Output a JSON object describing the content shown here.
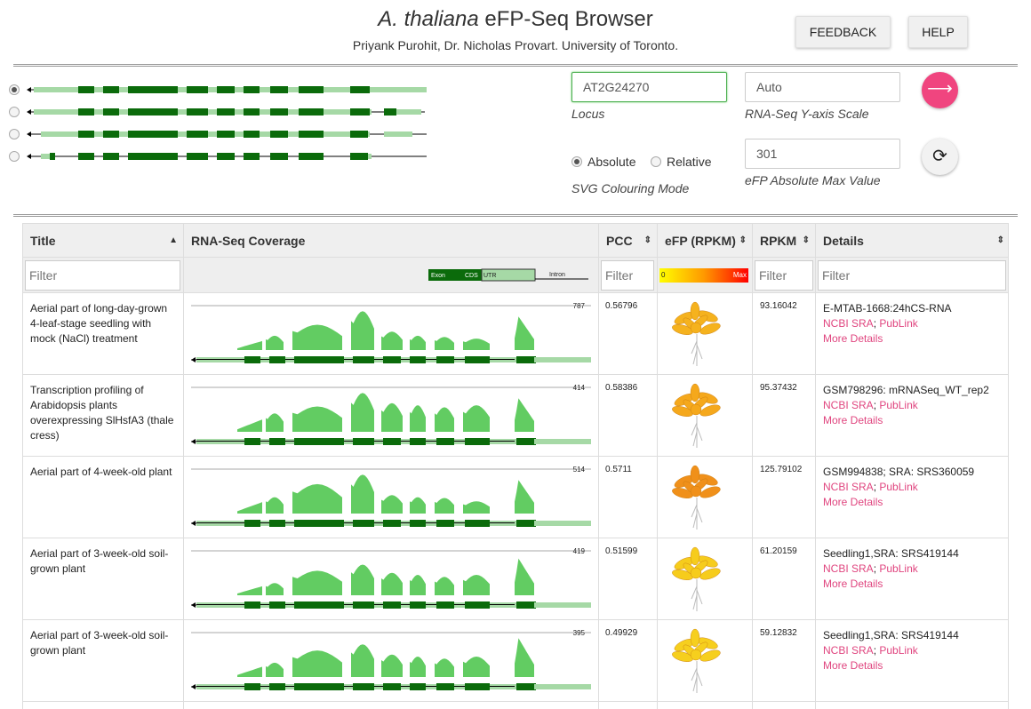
{
  "header": {
    "title_italic": "A. thaliana",
    "title_rest": " eFP-Seq Browser",
    "subtitle": "Priyank Purohit, Dr. Nicholas Provart. University of Toronto.",
    "feedback_label": "FEEDBACK",
    "help_label": "HELP"
  },
  "isoforms": [
    {
      "selected": true
    },
    {
      "selected": false
    },
    {
      "selected": false
    },
    {
      "selected": false
    }
  ],
  "controls": {
    "locus_value": "AT2G24270",
    "locus_label": "Locus",
    "yaxis_value": "Auto",
    "yaxis_label": "RNA-Seq Y-axis Scale",
    "mode_absolute": "Absolute",
    "mode_relative": "Relative",
    "mode_selected": "Absolute",
    "svg_mode_label": "SVG Colouring Mode",
    "max_value": "301",
    "max_label": "eFP Absolute Max Value",
    "go_icon": "arrow-right-icon",
    "reset_icon": "refresh-icon"
  },
  "table": {
    "columns": {
      "title": "Title",
      "coverage": "RNA-Seq Coverage",
      "pcc": "PCC",
      "efp": "eFP (RPKM)",
      "rpkm": "RPKM",
      "details": "Details"
    },
    "filter_placeholder": "Filter",
    "legend": {
      "exon": "Exon",
      "cds": "CDS",
      "utr": "UTR",
      "intron": "Intron",
      "min": "0",
      "max": "Max"
    },
    "rows": [
      {
        "title": "Aerial part of long-day-grown 4-leaf-stage seedling with mock (NaCl) treatment",
        "peak": "787",
        "pcc": "0.56796",
        "rpkm": "93.16042",
        "detail": "E-MTAB-1668:24hCS-RNA",
        "ncbi": "NCBI SRA",
        "sep": ";",
        "publink": "PubLink",
        "more": "More Details",
        "efp_color": "#f5b21e"
      },
      {
        "title": "Transcription profiling of Arabidopsis plants overexpressing SlHsfA3 (thale cress)",
        "peak": "414",
        "pcc": "0.58386",
        "rpkm": "95.37432",
        "detail": "GSM798296: mRNASeq_WT_rep2",
        "ncbi": "NCBI SRA",
        "sep": ";",
        "publink": "PubLink",
        "more": "More Details",
        "efp_color": "#f5a81c"
      },
      {
        "title": "Aerial part of 4-week-old plant",
        "peak": "514",
        "pcc": "0.5711",
        "rpkm": "125.79102",
        "detail": "GSM994838; SRA: SRS360059",
        "ncbi": "NCBI SRA",
        "sep": ";",
        "publink": "PubLink",
        "more": "More Details",
        "efp_color": "#f0901a"
      },
      {
        "title": "Aerial part of 3-week-old soil-grown plant",
        "peak": "419",
        "pcc": "0.51599",
        "rpkm": "61.20159",
        "detail": "Seedling1,SRA: SRS419144",
        "ncbi": "NCBI SRA",
        "sep": ";",
        "publink": "PubLink",
        "more": "More Details",
        "efp_color": "#f6cc1c"
      },
      {
        "title": "Aerial part of 3-week-old soil-grown plant",
        "peak": "395",
        "pcc": "0.49929",
        "rpkm": "59.12832",
        "detail": "Seedling1,SRA: SRS419144",
        "ncbi": "NCBI SRA",
        "sep": ";",
        "publink": "PubLink",
        "more": "More Details",
        "efp_color": "#f6cf1e"
      }
    ]
  }
}
